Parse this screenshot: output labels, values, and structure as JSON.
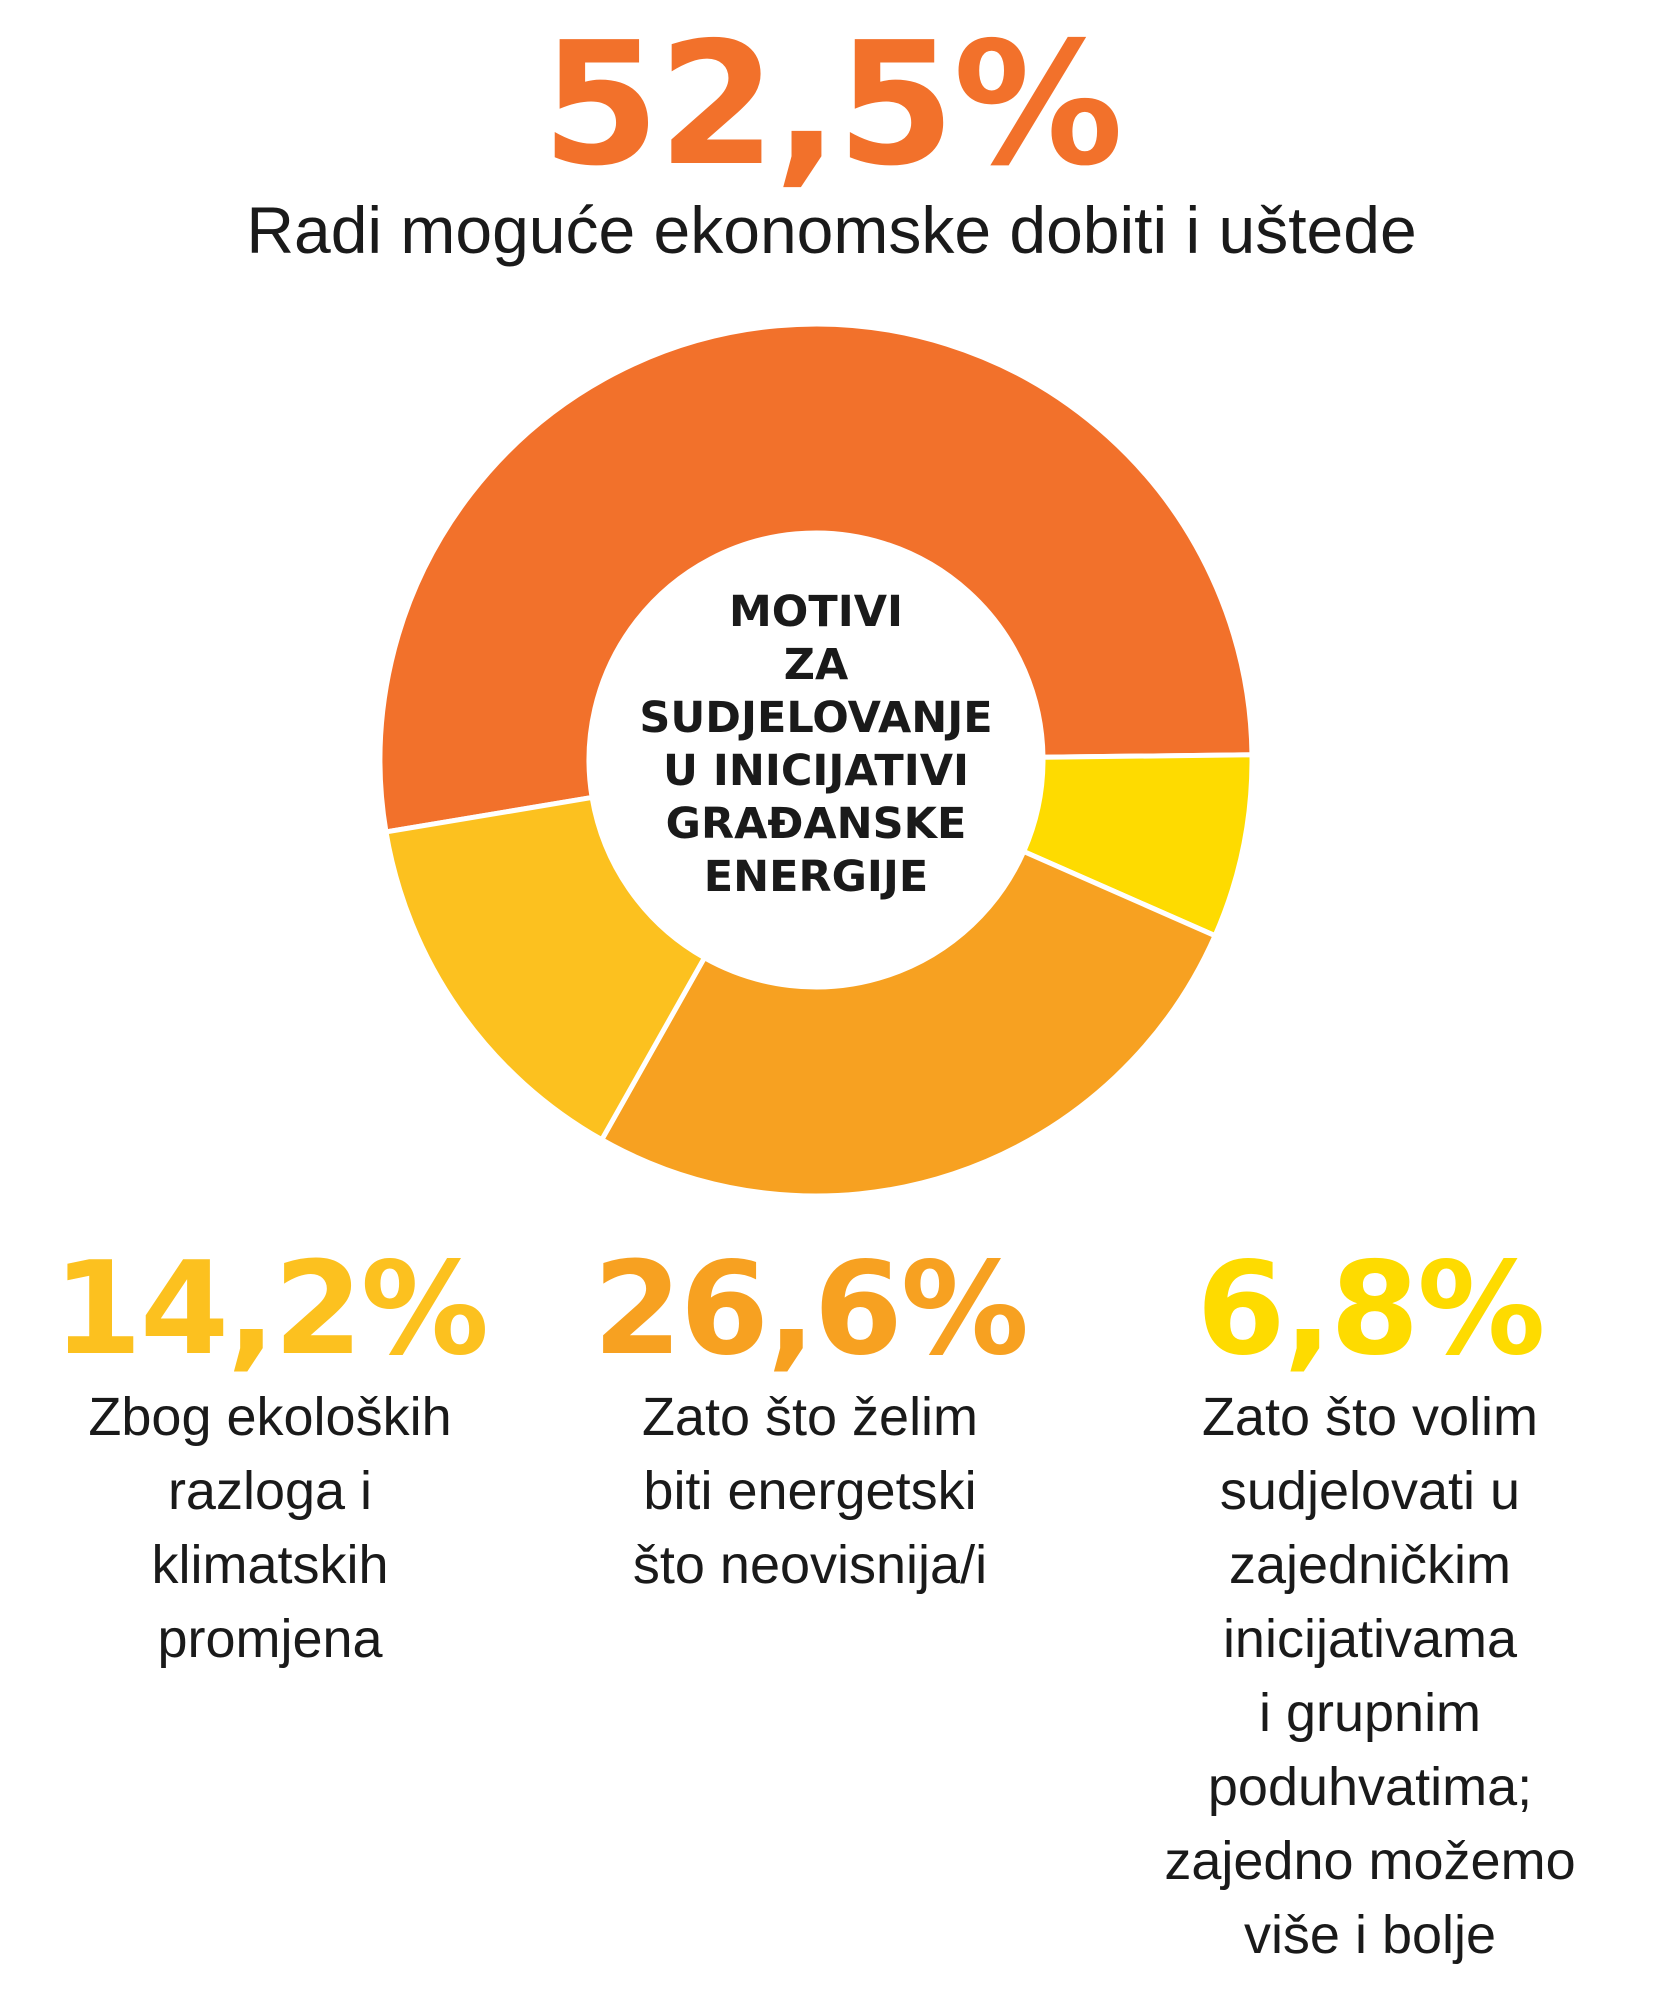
{
  "chart_data": {
    "type": "pie",
    "center_label": "MOTIVI\nZA\nSUDJELOVANJE\nU INICIJATIVI\nGRAĐANSKE\nENERGIJE",
    "slices": [
      {
        "value": "52,5%",
        "numeric": 52.5,
        "label": "Radi moguće ekonomske dobiti i uštede",
        "color": "#f2712b"
      },
      {
        "value": "6,8%",
        "numeric": 6.8,
        "label": "Zato što volim\nsudjelovati u\nzajedničkim\ninicijativama\ni grupnim\npoduhvatima;\nzajedno možemo\nviše i bolje",
        "color": "#fedb00"
      },
      {
        "value": "26,6%",
        "numeric": 26.6,
        "label": "Zato što želim\nbiti energetski\nšto neovisnija/i",
        "color": "#f7a121"
      },
      {
        "value": "14,2%",
        "numeric": 14.2,
        "label": "Zbog ekoloških\nrazloga i\nklimatskih\npromjena",
        "color": "#fcc11f"
      }
    ]
  }
}
